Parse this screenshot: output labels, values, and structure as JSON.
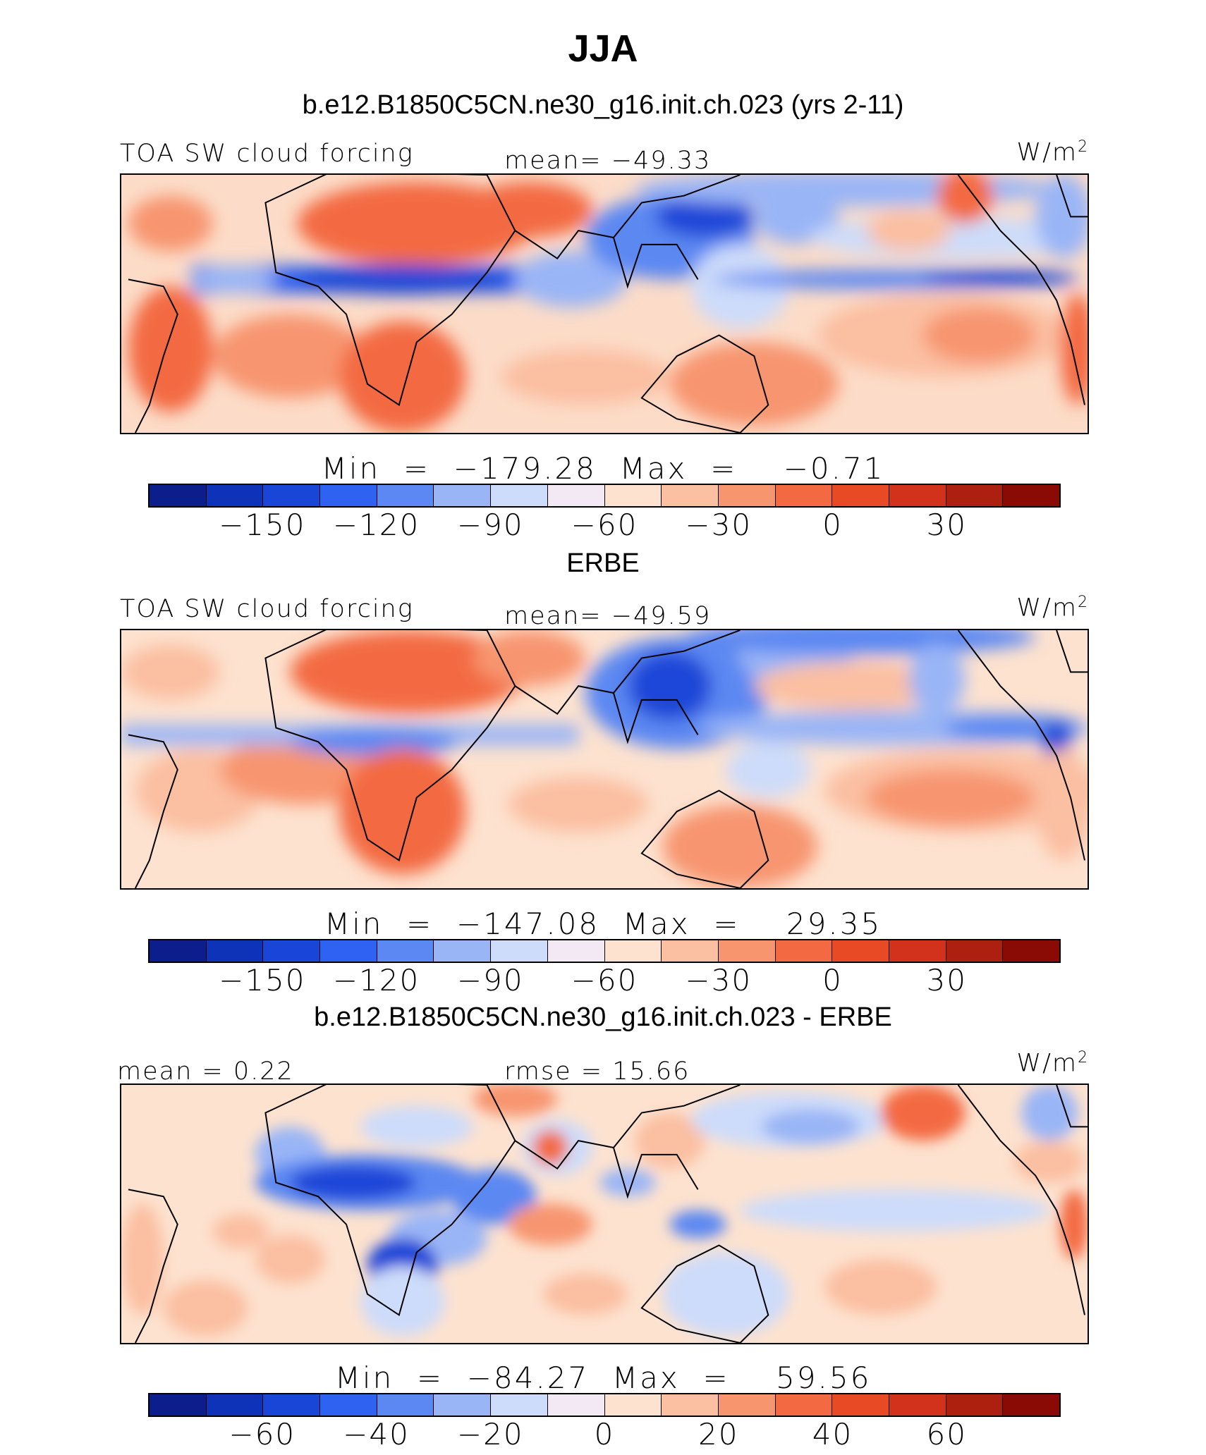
{
  "title": "JJA",
  "colorbar_colors": [
    "#0b1e8c",
    "#0f33b8",
    "#1a46d8",
    "#2f62f0",
    "#5b88f2",
    "#9ab5f6",
    "#cddcfa",
    "#f2e9f4",
    "#fde2cf",
    "#fbbfa2",
    "#f7956f",
    "#f36a42",
    "#e84a26",
    "#d2321b",
    "#ad2010",
    "#8a0a06"
  ],
  "panels": [
    {
      "title": "b.e12.B1850C5CN.ne30_g16.init.ch.023 (yrs 2-11)",
      "left_label": "TOA SW cloud forcing",
      "center_label": "mean=  −49.33",
      "unit": "W/m",
      "unit_sup": "2",
      "min_max": "Min  =  −179.28  Max  =    −0.71",
      "ticks": [
        "−150",
        "−120",
        "−90",
        "−60",
        "−30",
        "0",
        "30"
      ]
    },
    {
      "title": "ERBE",
      "left_label": "TOA SW cloud forcing",
      "center_label": "mean=  −49.59",
      "unit": "W/m",
      "unit_sup": "2",
      "min_max": "Min  =  −147.08  Max  =    29.35",
      "ticks": [
        "−150",
        "−120",
        "−90",
        "−60",
        "−30",
        "0",
        "30"
      ]
    },
    {
      "title": "b.e12.B1850C5CN.ne30_g16.init.ch.023 - ERBE",
      "left_label": "mean =    0.22",
      "center_label": "rmse  =   15.66",
      "unit": "W/m",
      "unit_sup": "2",
      "min_max": "Min  =  −84.27  Max  =    59.56",
      "ticks": [
        "−60",
        "−40",
        "−20",
        "0",
        "20",
        "40",
        "60"
      ]
    }
  ]
}
